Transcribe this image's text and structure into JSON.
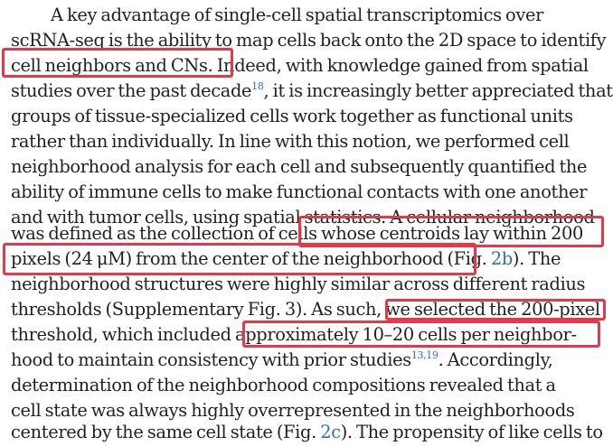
{
  "lines": [
    {
      "text": "A key advantage of single-cell spatial transcriptomics over"
    },
    {
      "text": "scRNA-seq is the ability to map cells back onto the 2D space to identify"
    },
    {
      "text": "cell neighbors and CNs. Indeed, with knowledge gained from spatial"
    },
    {
      "pre": "studies over the past decade",
      "sup": "18",
      "post": ", it is increasingly better appreciated that"
    },
    {
      "text": "groups of tissue-specialized cells work together as functional units"
    },
    {
      "text": "rather than individually. In line with this notion, we performed cell"
    },
    {
      "text": "neighborhood analysis for each cell and subsequently quantified the"
    },
    {
      "text": "ability of immune cells to make functional contacts with one another"
    },
    {
      "text": "and with tumor cells, using spatial statistics. A cellular neighborhood"
    },
    {
      "text": "was defined as the collection of cells whose centroids lay within 200"
    },
    {
      "pre": "pixels (24 μM) from the center of the neighborhood (Fig. ",
      "ref": "2b",
      "post": "). The"
    },
    {
      "text": "neighborhood structures were highly similar across different radius"
    },
    {
      "text": "thresholds (Supplementary Fig. 3). As such, we selected the 200-pixel"
    },
    {
      "text": "threshold, which included approximately 10–20 cells per neighbor-"
    },
    {
      "pre": "hood to maintain consistency with prior studies",
      "sup": "13,19",
      "post": ". Accordingly,"
    },
    {
      "text": "determination of the neighborhood compositions revealed that a"
    },
    {
      "text": "cell state was always highly overrepresented in the neighborhoods"
    },
    {
      "pre": "centered by the same cell state (Fig. ",
      "ref": "2c",
      "post": "). The propensity of like cells to"
    }
  ],
  "highlight_color": "#e5394b",
  "link_color": "#2e6fad"
}
